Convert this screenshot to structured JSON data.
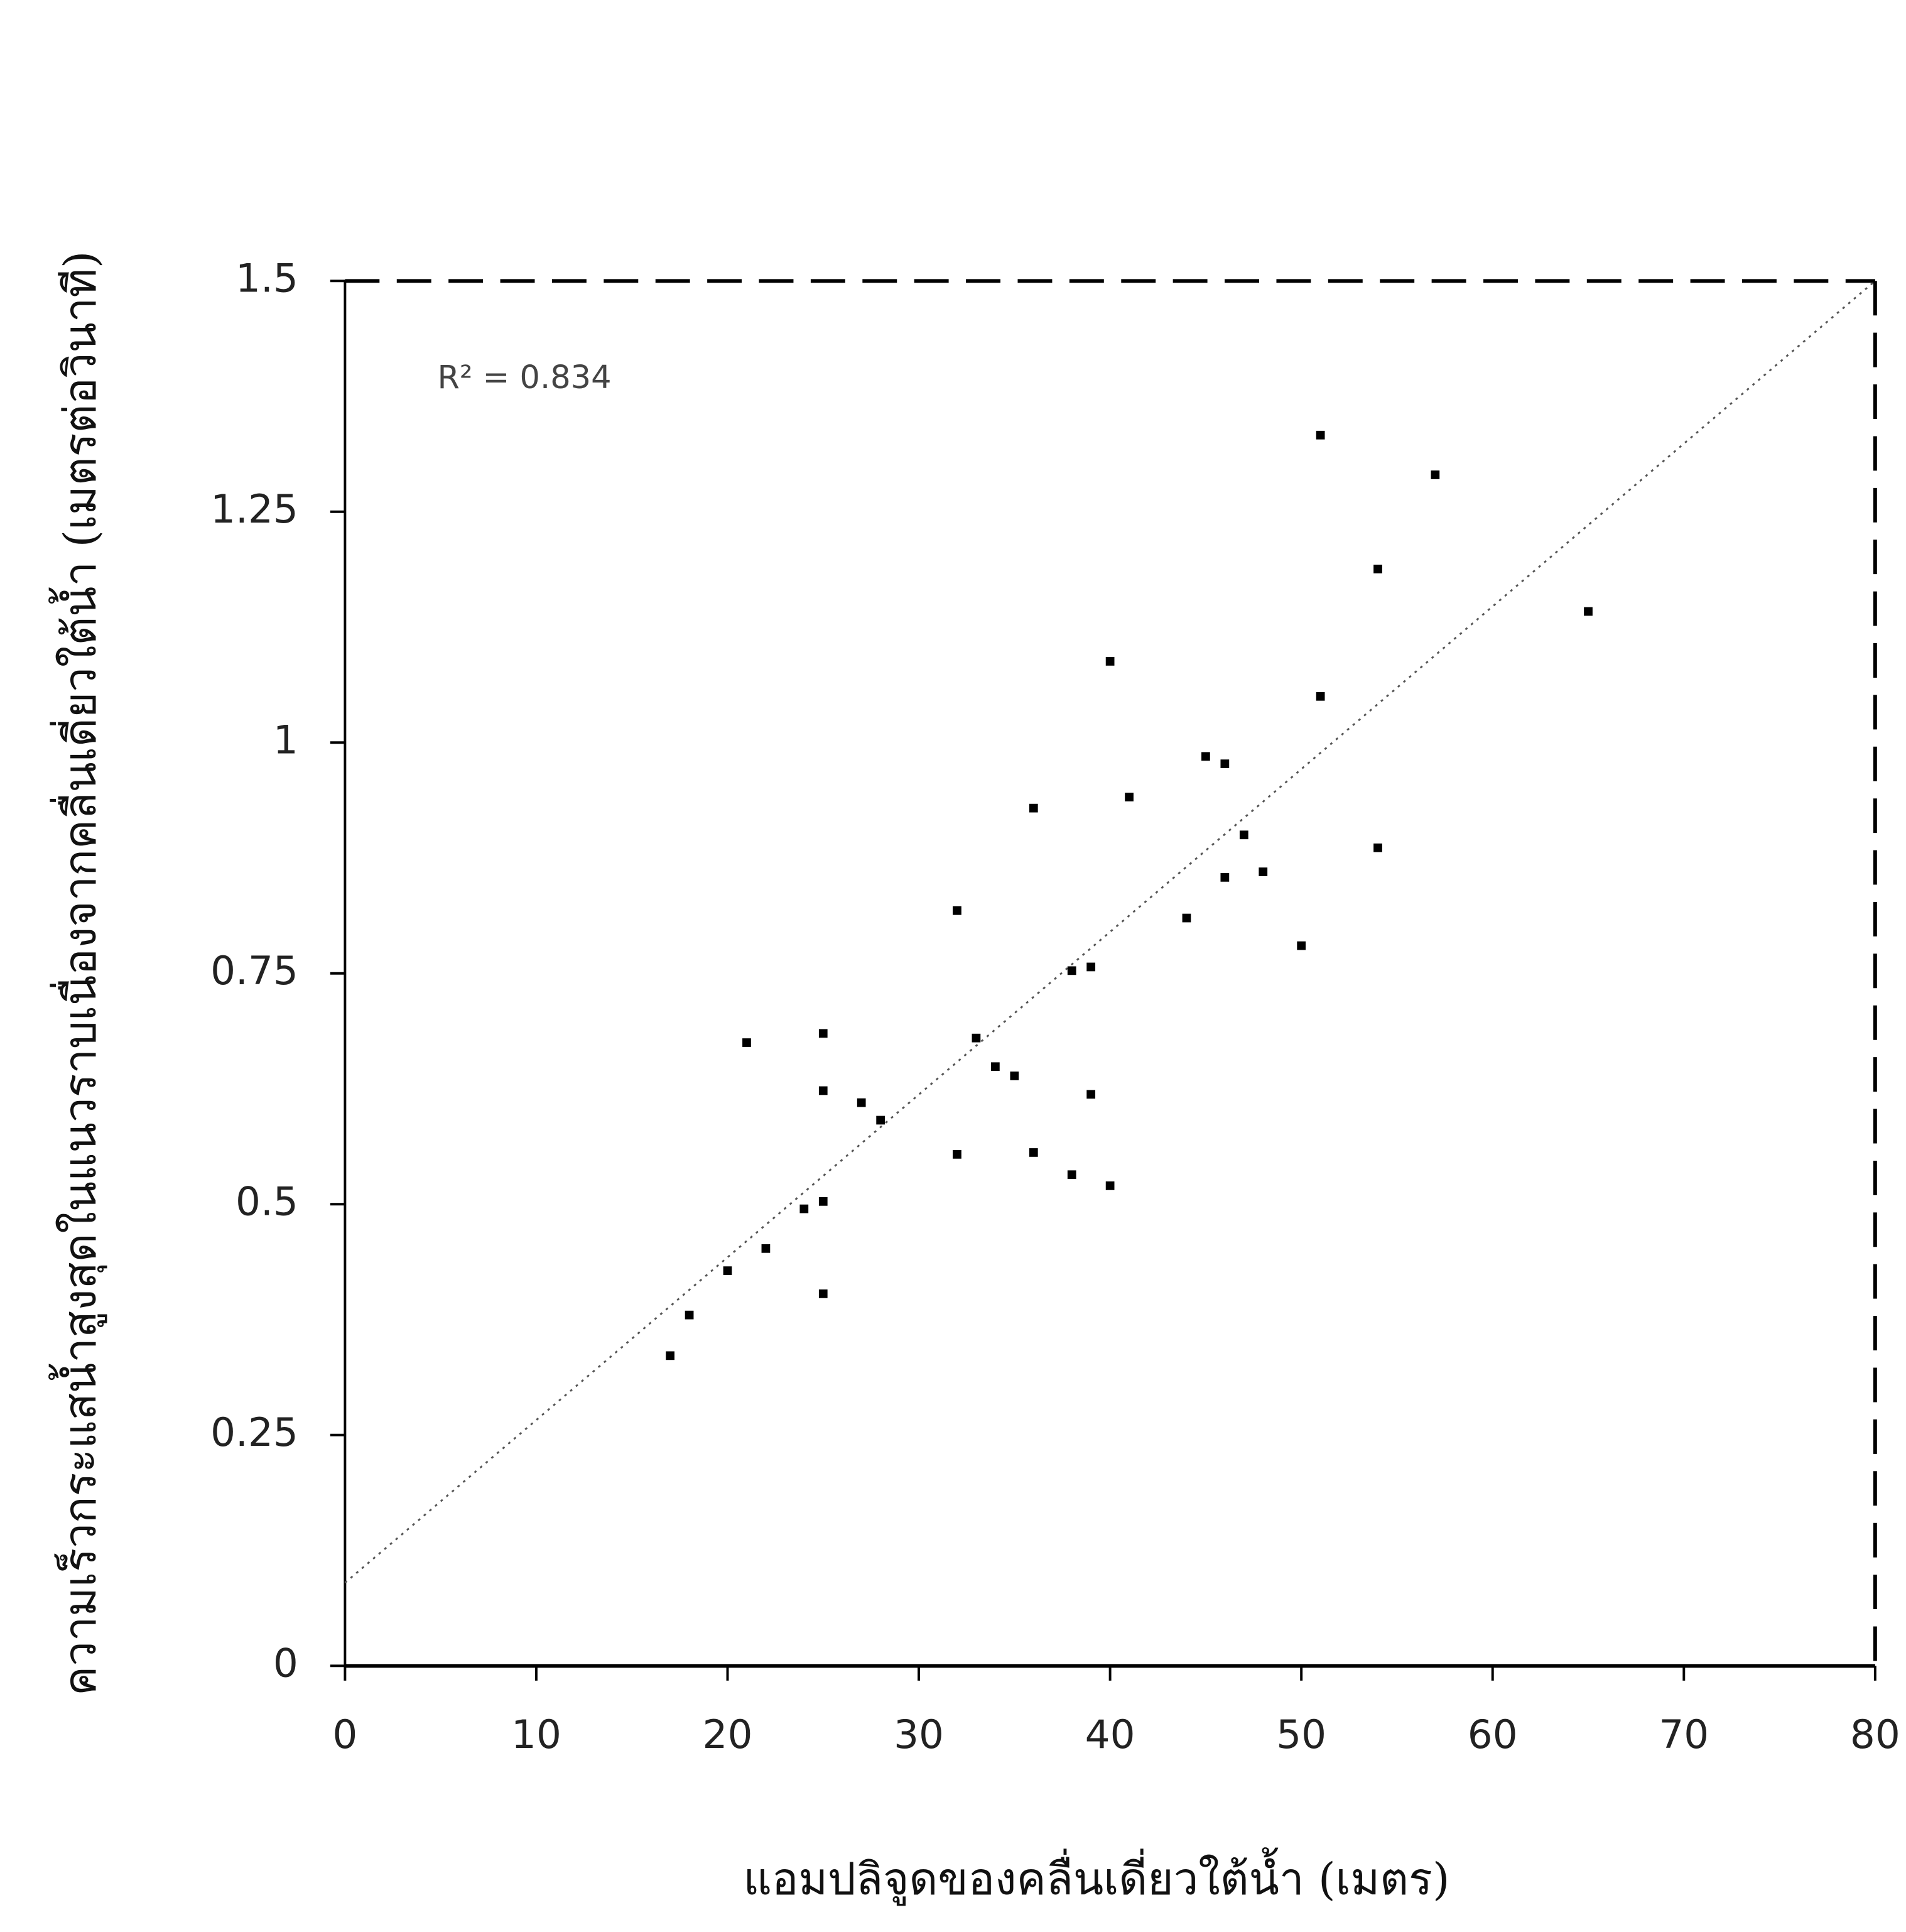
{
  "chart_data": {
    "type": "scatter",
    "x_label": "แอมปลิจูดของคลื่นเดี่ยวใต้น้ำ (เมตร)",
    "y_label": "ความเร็วกระแสน้ำสูงสุดในแนวราบเนื่องจากคลื่นเดี่ยวใต้น้ำ (เมตรต่อวินาที)",
    "annotation": "R² = 0.834",
    "x": [
      17,
      18,
      20,
      22,
      24,
      25,
      25,
      25,
      25,
      21,
      27,
      28,
      32,
      32,
      33,
      34,
      35,
      36,
      36,
      38,
      38,
      39,
      39,
      40,
      40,
      41,
      44,
      45,
      46,
      46,
      47,
      48,
      50,
      51,
      51,
      54,
      54,
      57,
      65
    ],
    "values": [
      0.336,
      0.38,
      0.428,
      0.452,
      0.495,
      0.503,
      0.403,
      0.623,
      0.685,
      0.675,
      0.61,
      0.591,
      0.554,
      0.818,
      0.68,
      0.649,
      0.639,
      0.556,
      0.929,
      0.532,
      0.753,
      0.757,
      0.619,
      0.52,
      1.088,
      0.941,
      0.81,
      0.985,
      0.977,
      0.854,
      0.9,
      0.86,
      0.78,
      1.05,
      1.333,
      1.188,
      0.886,
      1.29,
      1.142
    ],
    "color": "#000000",
    "trend": {
      "x": [
        0,
        80
      ],
      "values": [
        0.09,
        1.5
      ],
      "color": "#555555"
    },
    "xlim": [
      0,
      80
    ],
    "ylim": [
      0,
      1.5
    ],
    "xticks": [
      0,
      10,
      20,
      30,
      40,
      50,
      60,
      70,
      80
    ],
    "yticks": [
      0,
      0.25,
      0.5,
      0.75,
      1,
      1.25,
      1.5
    ]
  }
}
